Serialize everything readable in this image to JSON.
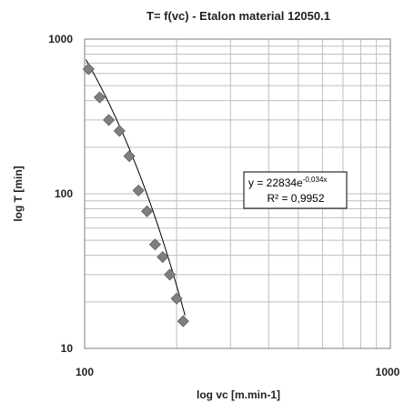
{
  "chart_data": {
    "type": "scatter",
    "title": "T= f(vc) - Etalon material 12050.1",
    "xlabel": "log vc [m.min-1]",
    "ylabel": "log T [min]",
    "x_scale": "log",
    "y_scale": "log",
    "xlim": [
      100,
      1000
    ],
    "ylim": [
      10,
      1000
    ],
    "x_ticks": [
      "100",
      "1000"
    ],
    "y_ticks": [
      "1000",
      "100",
      "10"
    ],
    "grid": true,
    "marker_color": "#7f7f7f",
    "trendline_color": "#000000",
    "series": [
      {
        "x": [
          103,
          112,
          120,
          130,
          140,
          150,
          160,
          170,
          180,
          190,
          200,
          210
        ],
        "y": [
          640,
          420,
          300,
          255,
          175,
          105,
          77,
          47,
          39,
          30,
          21,
          15
        ]
      }
    ],
    "trendline": {
      "type": "exponential",
      "a": 22834,
      "b": -0.034,
      "x_range": [
        101,
        213
      ],
      "equation_main": "y = 22834e",
      "equation_exp": "-0,034x",
      "r_squared": "R² = 0,9952"
    }
  }
}
